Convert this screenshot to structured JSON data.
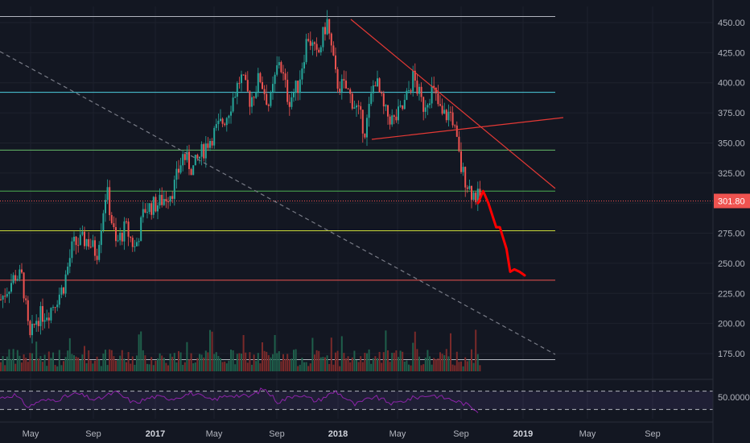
{
  "colors": {
    "background": "#131722",
    "up": "#26a69a",
    "down": "#ef5350",
    "vol_up": "#1f5f4b",
    "vol_down": "#7a2a2a",
    "rsi": "#8e24aa",
    "projection": "#ff0000",
    "triangle": "#e53935"
  },
  "chart_data": {
    "type": "candlestick",
    "title": "",
    "xlabel": "",
    "ylabel": "",
    "ylim": [
      150,
      460
    ],
    "y_ticks": [
      "450.00",
      "425.00",
      "400.00",
      "375.00",
      "350.00",
      "325.00",
      "300.00",
      "275.00",
      "250.00",
      "225.00",
      "200.00",
      "175.00"
    ],
    "x_ticks": [
      "May",
      "Sep",
      "2017",
      "May",
      "Sep",
      "2018",
      "May",
      "Sep",
      "2019",
      "May",
      "Sep"
    ],
    "x_ticks_bold": [
      "2017",
      "2018",
      "2019"
    ],
    "current_price": "301.80",
    "rsi_tick": "50.0000",
    "horizontal_levels": [
      {
        "value": 455,
        "color": "#b2b5be"
      },
      {
        "value": 392,
        "color": "#4dd0e1"
      },
      {
        "value": 344,
        "color": "#66bb6a"
      },
      {
        "value": 310,
        "color": "#4caf50"
      },
      {
        "value": 277,
        "color": "#cddc39"
      },
      {
        "value": 236,
        "color": "#ef5350"
      },
      {
        "value": 170,
        "color": "#b2b5be"
      }
    ],
    "price_path": [
      [
        0,
        220
      ],
      [
        0.03,
        240
      ],
      [
        0.045,
        238
      ],
      [
        0.06,
        185
      ],
      [
        0.075,
        205
      ],
      [
        0.1,
        210
      ],
      [
        0.13,
        230
      ],
      [
        0.15,
        265
      ],
      [
        0.18,
        270
      ],
      [
        0.2,
        258
      ],
      [
        0.22,
        312
      ],
      [
        0.24,
        265
      ],
      [
        0.26,
        280
      ],
      [
        0.28,
        262
      ],
      [
        0.3,
        295
      ],
      [
        0.33,
        300
      ],
      [
        0.36,
        312
      ],
      [
        0.38,
        340
      ],
      [
        0.4,
        328
      ],
      [
        0.43,
        350
      ],
      [
        0.47,
        372
      ],
      [
        0.5,
        405
      ],
      [
        0.52,
        385
      ],
      [
        0.54,
        405
      ],
      [
        0.56,
        380
      ],
      [
        0.58,
        420
      ],
      [
        0.6,
        385
      ],
      [
        0.62,
        398
      ],
      [
        0.64,
        440
      ],
      [
        0.66,
        420
      ],
      [
        0.68,
        452
      ],
      [
        0.7,
        400
      ],
      [
        0.72,
        395
      ],
      [
        0.74,
        380
      ],
      [
        0.76,
        360
      ],
      [
        0.78,
        405
      ],
      [
        0.8,
        375
      ],
      [
        0.82,
        368
      ],
      [
        0.84,
        380
      ],
      [
        0.86,
        405
      ],
      [
        0.88,
        380
      ],
      [
        0.9,
        395
      ],
      [
        0.92,
        372
      ],
      [
        0.94,
        375
      ],
      [
        0.96,
        328
      ],
      [
        0.98,
        310
      ],
      [
        1.0,
        302
      ]
    ],
    "projection": [
      [
        0,
        300
      ],
      [
        0.1,
        310
      ],
      [
        0.2,
        300
      ],
      [
        0.35,
        280
      ],
      [
        0.42,
        280
      ],
      [
        0.55,
        262
      ],
      [
        0.62,
        243
      ],
      [
        0.7,
        245
      ],
      [
        0.8,
        243
      ],
      [
        0.9,
        240
      ]
    ],
    "rsi_path": [
      [
        0,
        55
      ],
      [
        0.03,
        62
      ],
      [
        0.06,
        35
      ],
      [
        0.08,
        48
      ],
      [
        0.12,
        52
      ],
      [
        0.16,
        65
      ],
      [
        0.2,
        50
      ],
      [
        0.24,
        68
      ],
      [
        0.28,
        44
      ],
      [
        0.32,
        58
      ],
      [
        0.36,
        54
      ],
      [
        0.4,
        66
      ],
      [
        0.44,
        50
      ],
      [
        0.48,
        62
      ],
      [
        0.52,
        58
      ],
      [
        0.55,
        76
      ],
      [
        0.58,
        46
      ],
      [
        0.62,
        64
      ],
      [
        0.66,
        48
      ],
      [
        0.7,
        70
      ],
      [
        0.74,
        40
      ],
      [
        0.78,
        58
      ],
      [
        0.82,
        42
      ],
      [
        0.86,
        55
      ],
      [
        0.9,
        62
      ],
      [
        0.94,
        52
      ],
      [
        0.97,
        42
      ],
      [
        1.0,
        25
      ]
    ]
  }
}
